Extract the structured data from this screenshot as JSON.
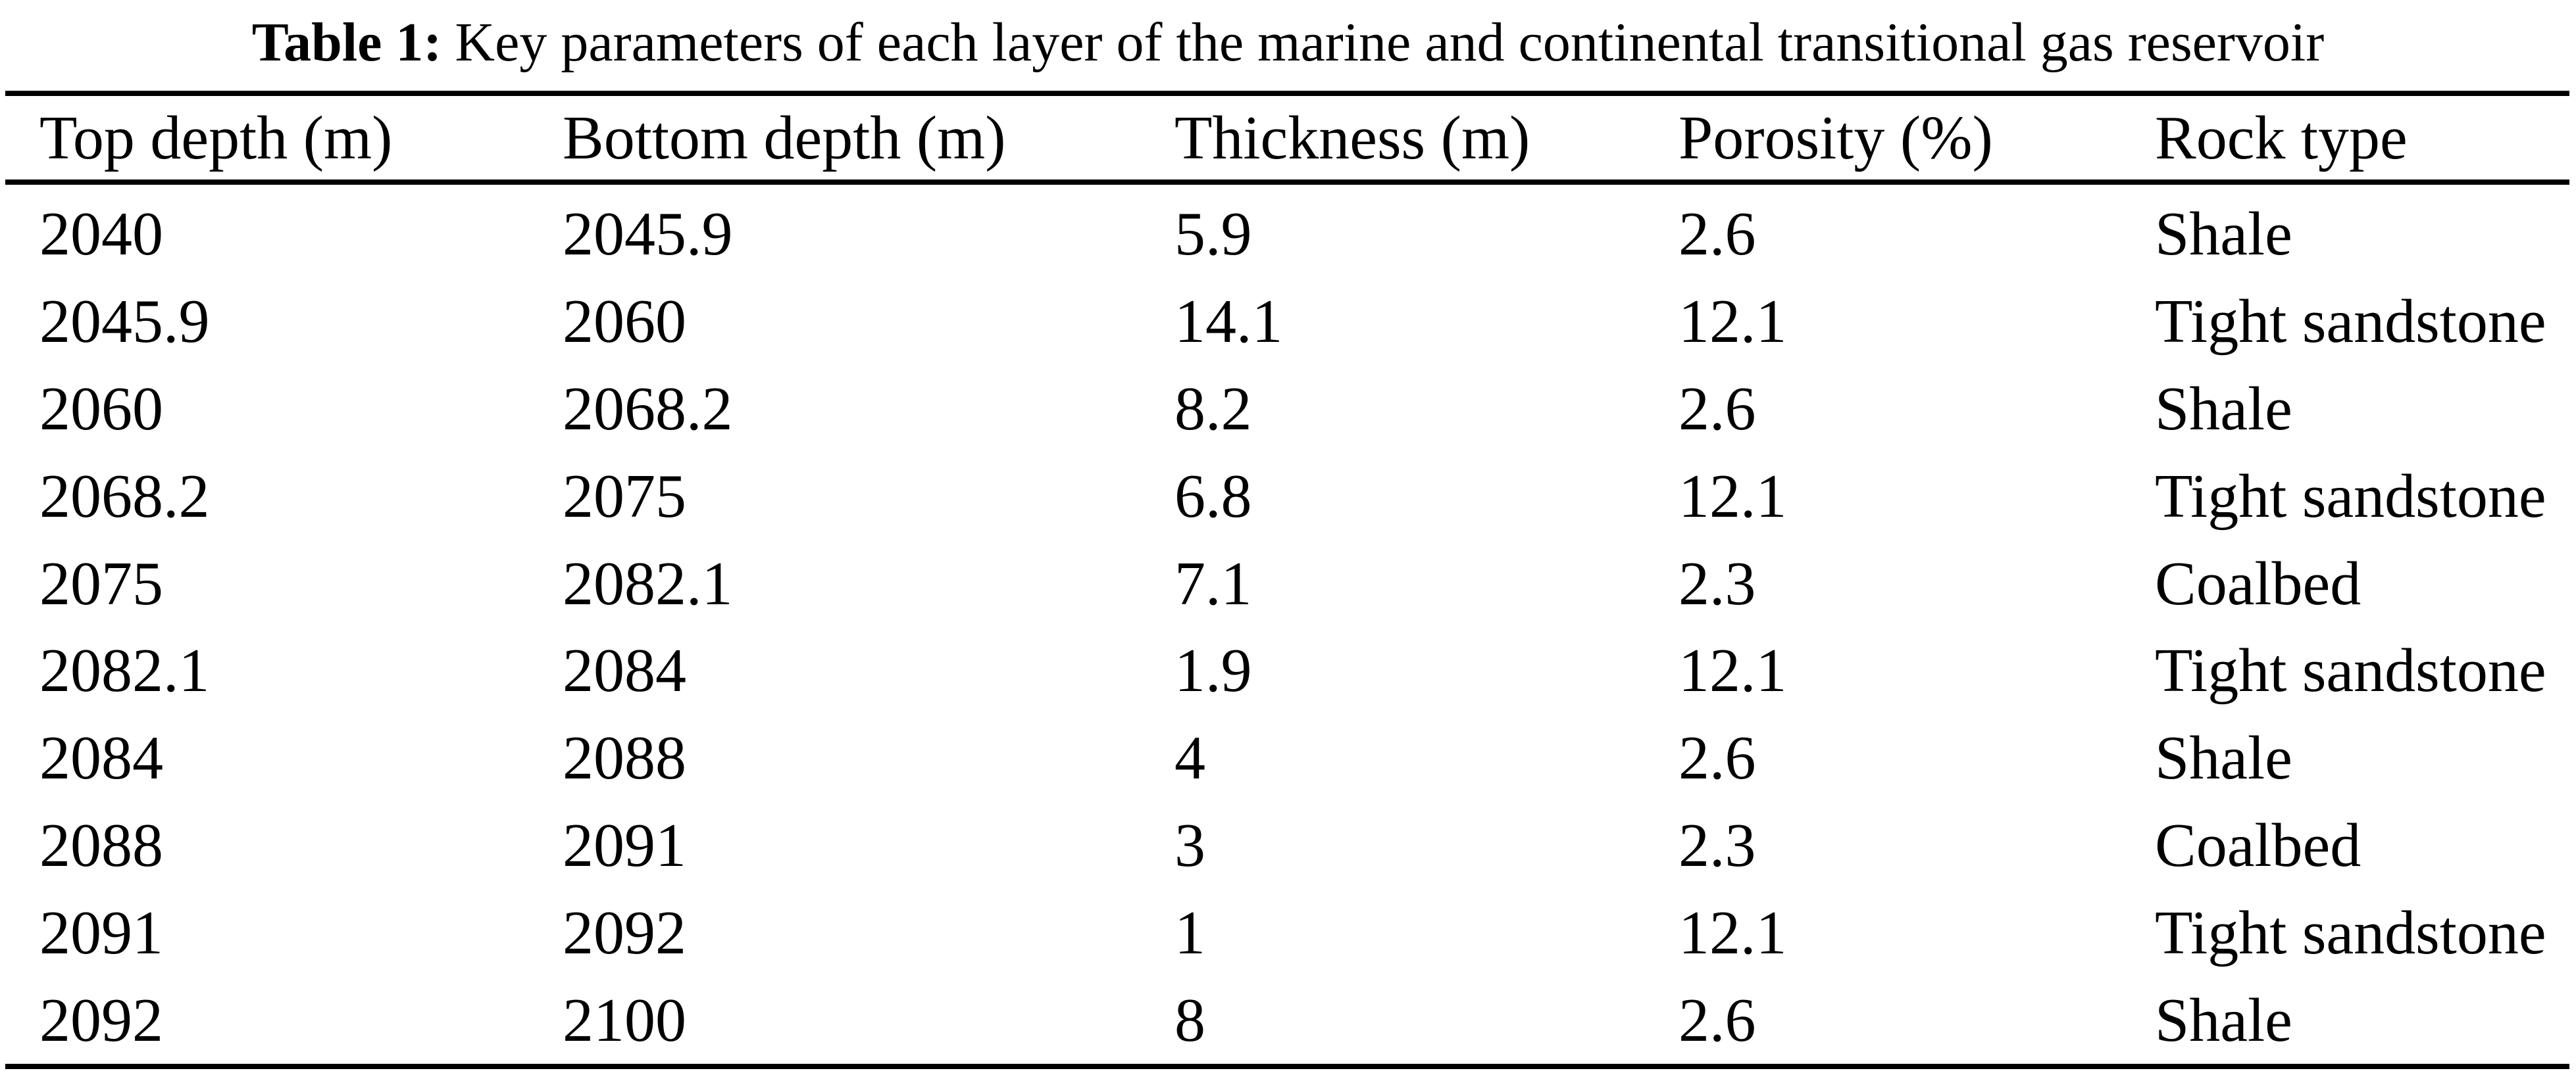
{
  "title": {
    "label": "Table 1:",
    "text": "Key parameters of each layer of the marine and continental transitional gas reservoir"
  },
  "table": {
    "columns": [
      "Top depth (m)",
      "Bottom depth (m)",
      "Thickness (m)",
      "Porosity (%)",
      "Rock type"
    ],
    "rows": [
      [
        "2040",
        "2045.9",
        "5.9",
        "2.6",
        "Shale"
      ],
      [
        "2045.9",
        "2060",
        "14.1",
        "12.1",
        "Tight sandstone"
      ],
      [
        "2060",
        "2068.2",
        "8.2",
        "2.6",
        "Shale"
      ],
      [
        "2068.2",
        "2075",
        "6.8",
        "12.1",
        "Tight sandstone"
      ],
      [
        "2075",
        "2082.1",
        "7.1",
        "2.3",
        "Coalbed"
      ],
      [
        "2082.1",
        "2084",
        "1.9",
        "12.1",
        "Tight sandstone"
      ],
      [
        "2084",
        "2088",
        "4",
        "2.6",
        "Shale"
      ],
      [
        "2088",
        "2091",
        "3",
        "2.3",
        "Coalbed"
      ],
      [
        "2091",
        "2092",
        "1",
        "12.1",
        "Tight sandstone"
      ],
      [
        "2092",
        "2100",
        "8",
        "2.6",
        "Shale"
      ]
    ]
  },
  "colors": {
    "text": "#000000",
    "background": "#ffffff",
    "rule": "#000000"
  }
}
